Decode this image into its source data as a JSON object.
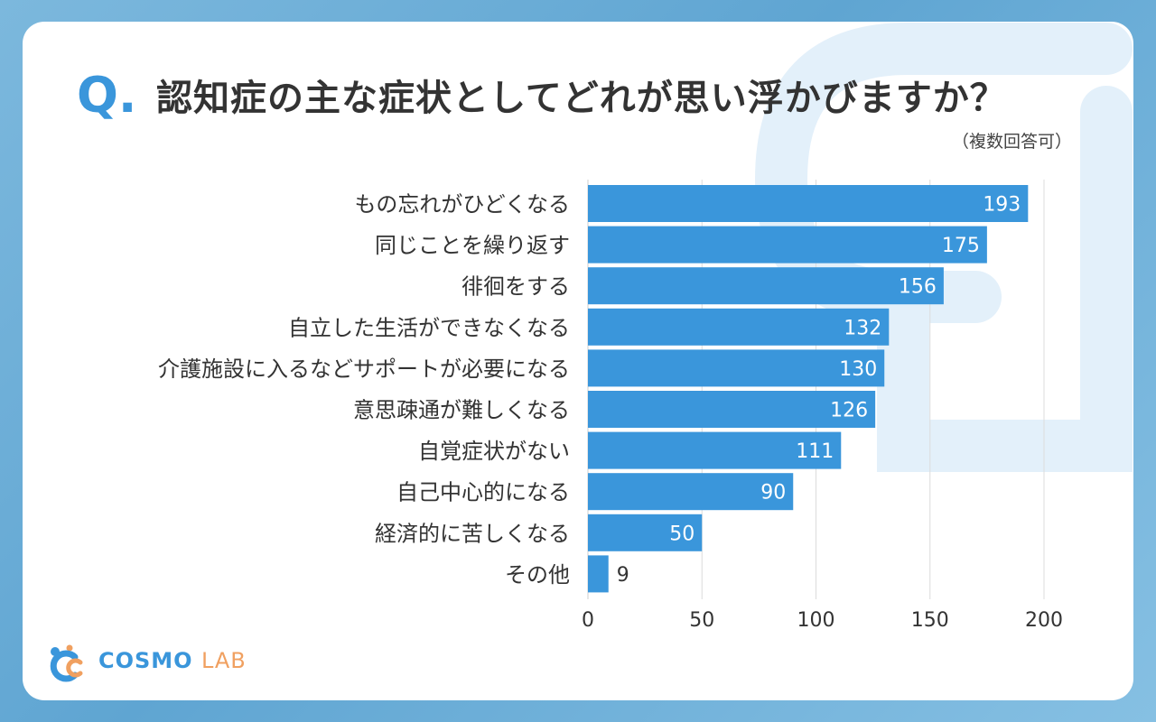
{
  "header": {
    "q_letter": "Q.",
    "title": "認知症の主な症状としてどれが思い浮かびますか？",
    "note": "（複数回答可）"
  },
  "colors": {
    "bar": "#3a96db",
    "accent": "#3a96db",
    "logo_blue": "#3a96db",
    "logo_orange": "#f0a060"
  },
  "logo": {
    "word1": "COSMO",
    "word2": "LAB",
    "icon": "cosmo-lab-logo-icon"
  },
  "chart_data": {
    "type": "bar",
    "orientation": "horizontal",
    "categories": [
      "もの忘れがひどくなる",
      "同じことを繰り返す",
      "徘徊をする",
      "自立した生活ができなくなる",
      "介護施設に入るなどサポートが必要になる",
      "意思疎通が難しくなる",
      "自覚症状がない",
      "自己中心的になる",
      "経済的に苦しくなる",
      "その他"
    ],
    "values": [
      193,
      175,
      156,
      132,
      130,
      126,
      111,
      90,
      50,
      9
    ],
    "xlim": [
      0,
      200
    ],
    "xticks": [
      0,
      50,
      100,
      150,
      200
    ],
    "grid": true,
    "title": "認知症の主な症状としてどれが思い浮かびますか？"
  }
}
